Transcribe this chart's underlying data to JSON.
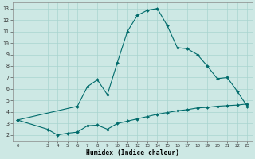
{
  "xlabel": "Humidex (Indice chaleur)",
  "ylabel": "",
  "bg_color": "#cde8e4",
  "grid_color": "#a8d4cf",
  "line_color": "#006b6b",
  "xlim": [
    -0.5,
    23.5
  ],
  "ylim": [
    1.5,
    13.5
  ],
  "xticks": [
    0,
    3,
    4,
    5,
    6,
    7,
    8,
    9,
    10,
    11,
    12,
    13,
    14,
    15,
    16,
    17,
    18,
    19,
    20,
    21,
    22,
    23
  ],
  "yticks": [
    2,
    3,
    4,
    5,
    6,
    7,
    8,
    9,
    10,
    11,
    12,
    13
  ],
  "line1_x": [
    0,
    3,
    4,
    5,
    6,
    7,
    8,
    9,
    10,
    11,
    12,
    13,
    14,
    15,
    16,
    17,
    18,
    19,
    20,
    21,
    22,
    23
  ],
  "line1_y": [
    3.3,
    2.5,
    2.0,
    2.15,
    2.25,
    2.8,
    2.85,
    2.5,
    3.0,
    3.2,
    3.4,
    3.6,
    3.8,
    3.95,
    4.1,
    4.2,
    4.35,
    4.4,
    4.5,
    4.55,
    4.6,
    4.7
  ],
  "line2_x": [
    0,
    6,
    7,
    8,
    9,
    10,
    11,
    12,
    13,
    14,
    15,
    16,
    17,
    18,
    19,
    20,
    21,
    22,
    23
  ],
  "line2_y": [
    3.3,
    4.5,
    6.2,
    6.8,
    5.5,
    8.3,
    11.0,
    12.4,
    12.85,
    13.0,
    11.5,
    9.6,
    9.5,
    9.0,
    8.0,
    6.9,
    7.0,
    5.8,
    4.5
  ]
}
